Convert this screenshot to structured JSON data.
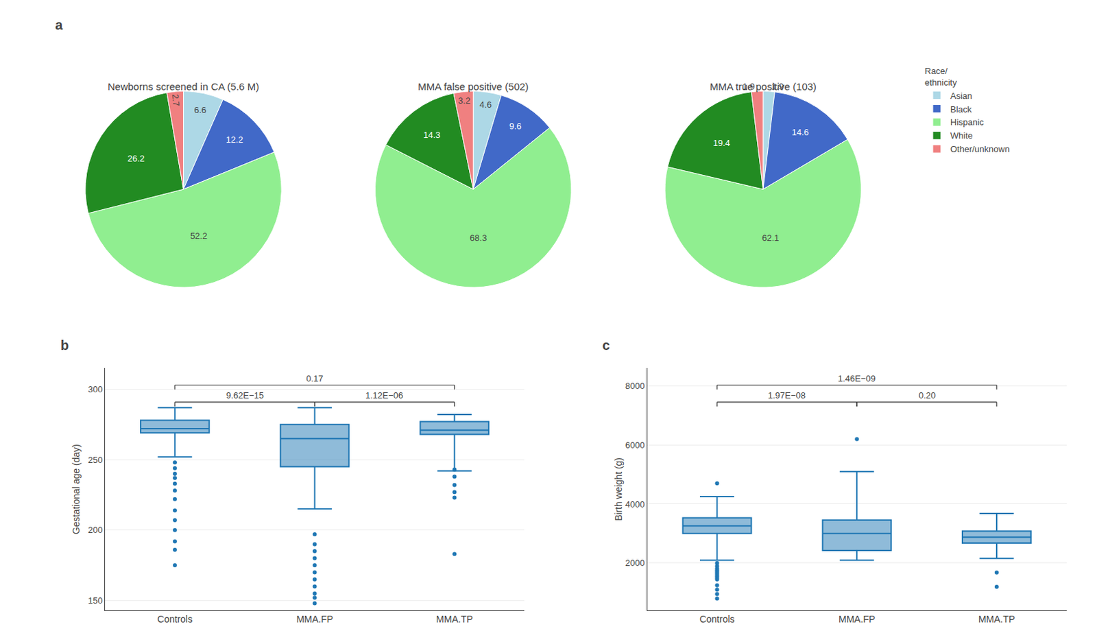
{
  "chart_data": [
    {
      "type": "pie",
      "title": "Newborns screened in CA (5.6 M)",
      "panel_label": "a",
      "legend_title": "Race/\nethnicity",
      "categories": [
        "Asian",
        "Black",
        "Hispanic",
        "White",
        "Other/unknown"
      ],
      "values": [
        6.6,
        12.2,
        52.2,
        26.2,
        2.7
      ],
      "colors": [
        "#ADD8E6",
        "#4169C8",
        "#90EE90",
        "#228B22",
        "#F08080"
      ],
      "data_labels": true
    },
    {
      "type": "pie",
      "title": "MMA false positive (502)",
      "categories": [
        "Asian",
        "Black",
        "Hispanic",
        "White",
        "Other/unknown"
      ],
      "values": [
        4.6,
        9.6,
        68.3,
        14.3,
        3.2
      ],
      "colors": [
        "#ADD8E6",
        "#4169C8",
        "#90EE90",
        "#228B22",
        "#F08080"
      ],
      "data_labels": true
    },
    {
      "type": "pie",
      "title": "MMA true positive (103)",
      "categories": [
        "Asian",
        "Black",
        "Hispanic",
        "White",
        "Other/unknown"
      ],
      "values": [
        1.9,
        14.6,
        62.1,
        19.4,
        1.9
      ],
      "colors": [
        "#ADD8E6",
        "#4169C8",
        "#90EE90",
        "#228B22",
        "#F08080"
      ],
      "data_labels": true
    },
    {
      "type": "box",
      "panel_label": "b",
      "categories": [
        "Controls",
        "MMA.FP",
        "MMA.TP"
      ],
      "ylabel": "Gestational age (day)",
      "ylim": [
        143,
        315
      ],
      "yticks": [
        150,
        200,
        250,
        300
      ],
      "grid": true,
      "median": [
        272,
        265,
        271
      ],
      "q1": [
        269,
        245,
        268
      ],
      "q3": [
        278,
        275,
        277
      ],
      "whisker_low": [
        252,
        215,
        242
      ],
      "whisker_high": [
        287,
        287,
        282
      ],
      "outliers": [
        [
          248,
          244,
          240,
          237,
          233,
          228,
          222,
          214,
          207,
          200,
          192,
          186,
          175
        ],
        [
          197,
          190,
          185,
          180,
          175,
          170,
          165,
          160,
          155,
          152,
          148
        ],
        [
          243,
          238,
          232,
          227,
          223,
          183
        ]
      ],
      "annotations": [
        {
          "text": "9.62E−15",
          "from": "Controls",
          "to": "MMA.FP"
        },
        {
          "text": "1.12E−06",
          "from": "MMA.FP",
          "to": "MMA.TP"
        },
        {
          "text": "0.17",
          "from": "Controls",
          "to": "MMA.TP"
        }
      ]
    },
    {
      "type": "box",
      "panel_label": "c",
      "categories": [
        "Controls",
        "MMA.FP",
        "MMA.TP"
      ],
      "ylabel": "Birth weight (g)",
      "ylim": [
        400,
        8600
      ],
      "yticks": [
        2000,
        4000,
        6000,
        8000
      ],
      "grid": true,
      "median": [
        3260,
        3000,
        2880
      ],
      "q1": [
        3000,
        2430,
        2680
      ],
      "q3": [
        3530,
        3460,
        3080
      ],
      "whisker_low": [
        2100,
        2100,
        2160
      ],
      "whisker_high": [
        4250,
        5100,
        3680
      ],
      "outliers": [
        [
          4700,
          2000,
          1900,
          1820,
          1760,
          1710,
          1660,
          1610,
          1555,
          1500,
          1450,
          1250,
          1100,
          950,
          800
        ],
        [
          6200
        ],
        [
          1680,
          1200
        ]
      ],
      "annotations": [
        {
          "text": "1.97E−08",
          "from": "Controls",
          "to": "MMA.FP"
        },
        {
          "text": "0.20",
          "from": "MMA.FP",
          "to": "MMA.TP"
        },
        {
          "text": "1.46E−09",
          "from": "Controls",
          "to": "MMA.TP"
        }
      ]
    }
  ]
}
